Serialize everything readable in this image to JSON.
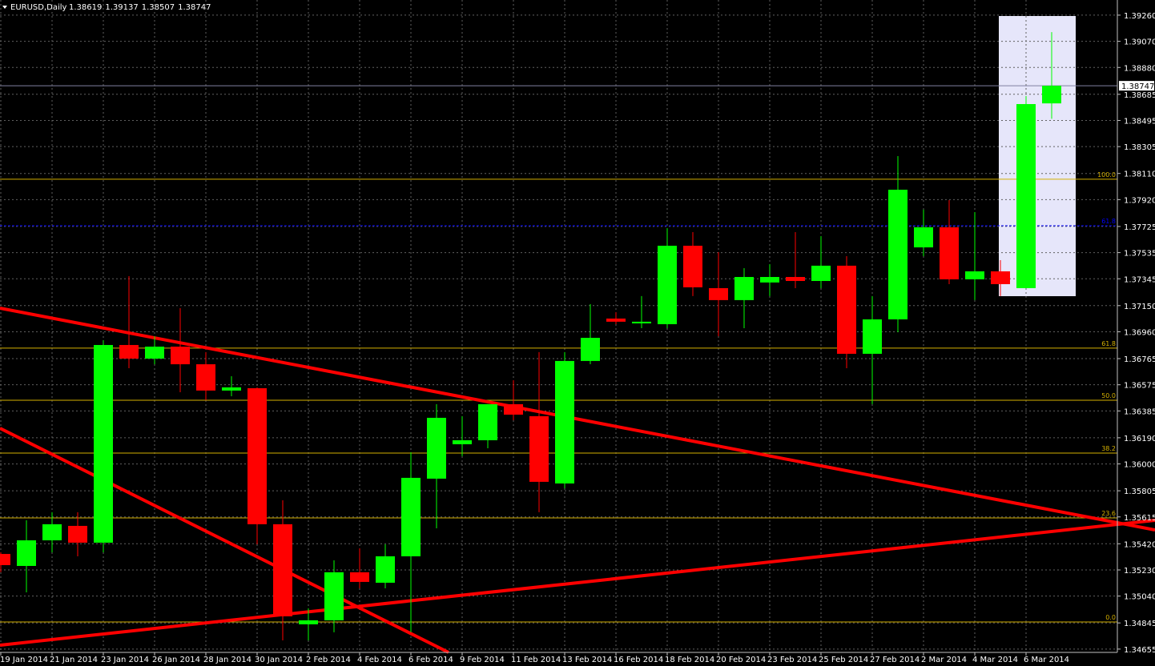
{
  "chart_data": {
    "type": "candlestick",
    "title": "EURUSD,Daily",
    "categories": [
      "19 Jan 2014",
      null,
      "21 Jan 2014",
      null,
      "23 Jan 2014",
      null,
      "26 Jan 2014",
      null,
      "28 Jan 2014",
      null,
      "30 Jan 2014",
      null,
      "2 Feb 2014",
      null,
      "4 Feb 2014",
      null,
      "6 Feb 2014",
      null,
      "9 Feb 2014",
      null,
      "11 Feb 2014",
      null,
      "13 Feb 2014",
      null,
      "16 Feb 2014",
      null,
      "18 Feb 2014",
      null,
      "20 Feb 2014",
      null,
      "23 Feb 2014",
      null,
      "25 Feb 2014",
      null,
      "27 Feb 2014",
      null,
      "2 Mar 2014",
      null,
      "4 Mar 2014",
      null,
      "6 Mar 2014",
      null
    ],
    "open": [
      1.35346,
      1.35259,
      1.35445,
      1.3555,
      1.35428,
      1.36864,
      1.36765,
      1.36852,
      1.36724,
      1.36533,
      1.3655,
      1.35562,
      1.34835,
      1.34864,
      1.35213,
      1.35137,
      1.35329,
      1.35893,
      1.36143,
      1.36172,
      1.36434,
      1.36347,
      1.35858,
      1.36748,
      1.37056,
      1.37021,
      1.37015,
      1.37585,
      1.37277,
      1.3719,
      1.37318,
      1.37358,
      1.37329,
      1.3744,
      1.368,
      1.3705,
      1.37573,
      1.37719,
      1.37341,
      1.37399,
      1.37277,
      1.38619
    ],
    "high": [
      1.35358,
      1.35591,
      1.35649,
      1.35649,
      1.36899,
      1.37364,
      1.36928,
      1.37131,
      1.36812,
      1.36637,
      1.36556,
      1.35736,
      1.34951,
      1.353,
      1.35387,
      1.35416,
      1.36085,
      1.36434,
      1.36347,
      1.36434,
      1.36608,
      1.36812,
      1.36812,
      1.37161,
      1.37102,
      1.37219,
      1.37713,
      1.37684,
      1.37538,
      1.37422,
      1.37451,
      1.37684,
      1.37655,
      1.37509,
      1.37219,
      1.38236,
      1.37847,
      1.37916,
      1.37829,
      1.3748,
      1.38672,
      1.39137
    ],
    "low": [
      1.35213,
      1.35067,
      1.35358,
      1.35329,
      1.35358,
      1.36695,
      1.36724,
      1.36521,
      1.36463,
      1.36492,
      1.35416,
      1.34718,
      1.34718,
      1.34777,
      1.35096,
      1.35096,
      1.34777,
      1.35532,
      1.36056,
      1.36114,
      1.36317,
      1.35649,
      1.35823,
      1.36724,
      1.37015,
      1.36986,
      1.36986,
      1.37219,
      1.36928,
      1.36986,
      1.37219,
      1.37277,
      1.37277,
      1.36695,
      1.36434,
      1.36957,
      1.37509,
      1.37306,
      1.3719,
      1.37219,
      1.37277,
      1.38507
    ],
    "close": [
      1.35265,
      1.35445,
      1.35562,
      1.35428,
      1.36864,
      1.36765,
      1.36852,
      1.36724,
      1.36533,
      1.36556,
      1.35562,
      1.34893,
      1.34864,
      1.35213,
      1.35143,
      1.35329,
      1.35899,
      1.36335,
      1.36172,
      1.36434,
      1.36358,
      1.3587,
      1.36748,
      1.36916,
      1.37033,
      1.37033,
      1.37585,
      1.37283,
      1.3719,
      1.37358,
      1.37358,
      1.37329,
      1.3744,
      1.368,
      1.3705,
      1.37992,
      1.37719,
      1.37341,
      1.37399,
      1.37306,
      1.38614,
      1.38747
    ],
    "up_color": "#00ff00",
    "down_color": "#ff0000",
    "ylim": [
      1.34631,
      1.3937
    ],
    "yticks": [
      {
        "value": 1.3926,
        "label": "1.39260"
      },
      {
        "value": 1.3907,
        "label": "1.39070"
      },
      {
        "value": 1.3888,
        "label": "1.38880"
      },
      1.38685,
      1.38495,
      1.38305,
      {
        "value": 1.3811,
        "label": "1.38110"
      },
      {
        "value": 1.3792,
        "label": "1.37920"
      },
      1.37725,
      1.37535,
      1.37345,
      {
        "value": 1.3715,
        "label": "1.37150"
      },
      {
        "value": 1.3696,
        "label": "1.36960"
      },
      1.36765,
      1.36575,
      1.36385,
      {
        "value": 1.3619,
        "label": "1.36190"
      },
      {
        "value": 1.36,
        "label": "1.36000"
      },
      1.35805,
      1.35615,
      {
        "value": 1.3542,
        "label": "1.35420"
      },
      {
        "value": 1.3523,
        "label": "1.35230"
      },
      {
        "value": 1.3504,
        "label": "1.35040"
      },
      1.34845,
      1.34655
    ],
    "grid": true,
    "current_price": 1.38747,
    "levels": [
      {
        "value": 1.38068,
        "label": "100.0",
        "color": "#d4b000"
      },
      {
        "value": 1.3773,
        "label": "61.8",
        "color": "#0000ff"
      },
      {
        "value": 1.36841,
        "label": "61.8",
        "color": "#d4b000"
      },
      {
        "value": 1.36463,
        "label": "50.0",
        "color": "#d4b000"
      },
      {
        "value": 1.36079,
        "label": "38.2",
        "color": "#d4b000"
      },
      {
        "value": 1.35608,
        "label": "23.6",
        "color": "#d4b000"
      },
      {
        "value": 1.34852,
        "label": "0.0",
        "color": "#d4b000"
      }
    ]
  }
}
